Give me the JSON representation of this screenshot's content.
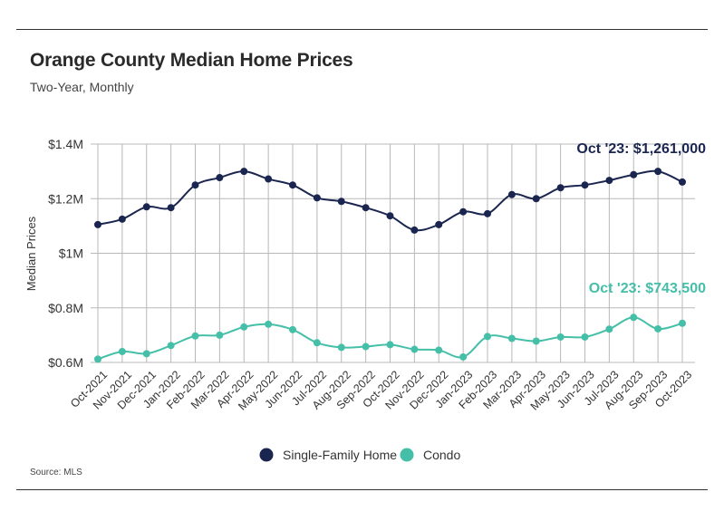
{
  "header": {
    "title": "Orange County Median Home Prices",
    "subtitle": "Two-Year, Monthly",
    "source": "Source:  MLS"
  },
  "colors": {
    "single_family": "#1b2650",
    "condo": "#45bfa8",
    "grid": "#b8b8b8"
  },
  "chart_data": {
    "type": "line",
    "title": "Orange County Median Home Prices",
    "subtitle": "Two-Year, Monthly",
    "xlabel": "",
    "ylabel": "Median Prices",
    "ylim": [
      600000,
      1400000
    ],
    "yticks": [
      {
        "value": 600000,
        "label": "$0.6M"
      },
      {
        "value": 800000,
        "label": "$0.8M"
      },
      {
        "value": 1000000,
        "label": "$1M"
      },
      {
        "value": 1200000,
        "label": "$1.2M"
      },
      {
        "value": 1400000,
        "label": "$1.4M"
      }
    ],
    "grid": true,
    "legend": "bottom",
    "categories": [
      "Oct-2021",
      "Nov-2021",
      "Dec-2021",
      "Jan-2022",
      "Feb-2022",
      "Mar-2022",
      "Apr-2022",
      "May-2022",
      "Jun-2022",
      "Jul-2022",
      "Aug-2022",
      "Sep-2022",
      "Oct-2022",
      "Nov-2022",
      "Dec-2022",
      "Jan-2023",
      "Feb-2023",
      "Mar-2023",
      "Apr-2023",
      "May-2023",
      "Jun-2023",
      "Jul-2023",
      "Aug-2023",
      "Sep-2023",
      "Oct-2023"
    ],
    "series": [
      {
        "name": "Single-Family Home",
        "color": "#1b2650",
        "values": [
          1105000,
          1125000,
          1170000,
          1167000,
          1250000,
          1277000,
          1300000,
          1272000,
          1250000,
          1203000,
          1190000,
          1167000,
          1137000,
          1085000,
          1105000,
          1152000,
          1145000,
          1215000,
          1200000,
          1240000,
          1250000,
          1267000,
          1288000,
          1300000,
          1261000
        ],
        "annotation": "Oct '23: $1,261,000"
      },
      {
        "name": "Condo",
        "color": "#45bfa8",
        "values": [
          612000,
          640000,
          632000,
          662000,
          697000,
          700000,
          730000,
          740000,
          720000,
          672000,
          655000,
          658000,
          665000,
          648000,
          645000,
          620000,
          695000,
          688000,
          678000,
          693000,
          693000,
          722000,
          765000,
          723000,
          743500
        ],
        "annotation": "Oct '23: $743,500"
      }
    ]
  }
}
